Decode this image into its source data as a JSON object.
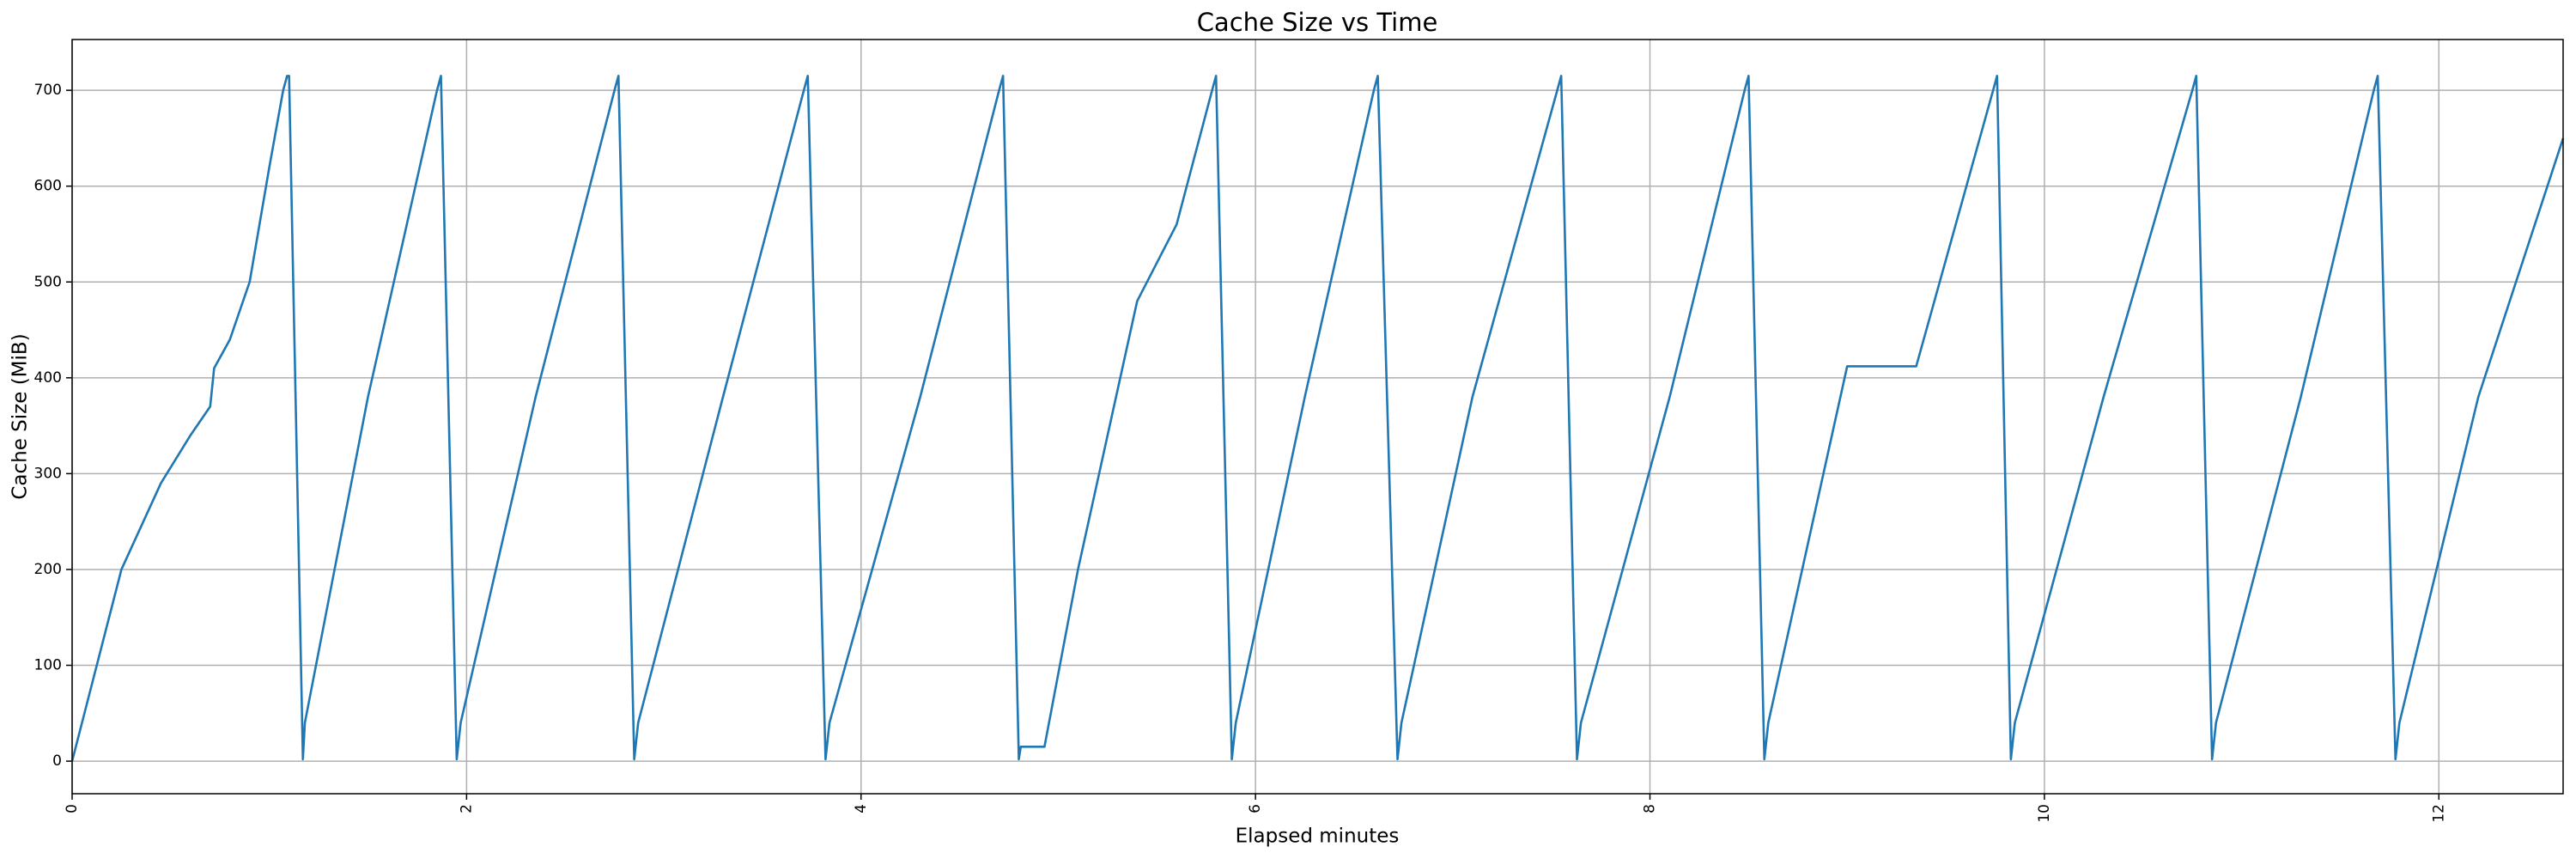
{
  "chart_data": {
    "type": "line",
    "title": "Cache Size vs Time",
    "x_label": "Elapsed minutes",
    "y_label": "Cache Size (MiB)",
    "x": [
      0,
      0.25,
      0.45,
      0.6,
      0.7,
      0.72,
      0.8,
      0.9,
      1.0,
      1.07,
      1.09,
      1.1,
      1.17,
      1.18,
      1.5,
      1.85,
      1.87,
      1.95,
      1.97,
      2.35,
      2.75,
      2.77,
      2.85,
      2.87,
      3.3,
      3.71,
      3.73,
      3.82,
      3.84,
      4.3,
      4.7,
      4.72,
      4.8,
      4.81,
      4.93,
      5.1,
      5.4,
      5.6,
      5.78,
      5.8,
      5.88,
      5.9,
      6.25,
      6.6,
      6.62,
      6.72,
      6.74,
      7.1,
      7.53,
      7.55,
      7.63,
      7.65,
      8.1,
      8.48,
      8.5,
      8.58,
      8.6,
      9.0,
      9.35,
      9.74,
      9.76,
      9.83,
      9.85,
      10.3,
      10.75,
      10.77,
      10.85,
      10.87,
      11.3,
      11.67,
      11.69,
      11.78,
      11.8,
      12.2,
      12.63
    ],
    "values": [
      0,
      200,
      290,
      340,
      370,
      410,
      440,
      500,
      620,
      700,
      715,
      715,
      2,
      40,
      380,
      700,
      715,
      2,
      40,
      380,
      700,
      715,
      2,
      40,
      380,
      700,
      715,
      2,
      40,
      380,
      700,
      715,
      2,
      15,
      15,
      200,
      480,
      560,
      700,
      715,
      2,
      40,
      380,
      700,
      715,
      2,
      40,
      380,
      700,
      715,
      2,
      40,
      380,
      700,
      715,
      2,
      40,
      412,
      412,
      700,
      715,
      2,
      40,
      380,
      700,
      715,
      2,
      40,
      380,
      700,
      715,
      2,
      40,
      380,
      650
    ],
    "color": "#1f77b4",
    "xlim": [
      0,
      12.63
    ],
    "ylim": [
      -34,
      753
    ],
    "xticks": [
      0,
      2,
      4,
      6,
      8,
      10,
      12
    ],
    "yticks": [
      0,
      100,
      200,
      300,
      400,
      500,
      600,
      700
    ],
    "grid": true
  }
}
